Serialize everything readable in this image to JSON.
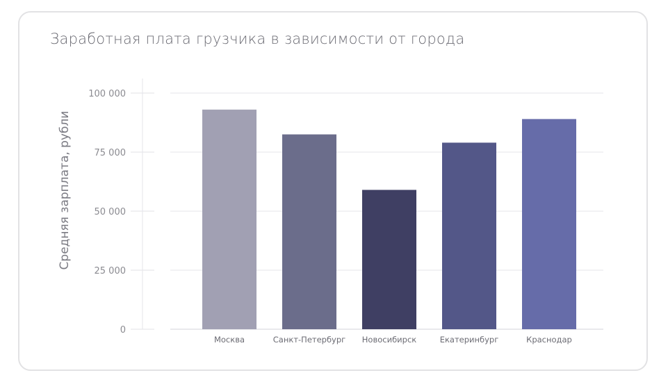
{
  "chart_data": {
    "type": "bar",
    "title": "Заработная плата грузчика в зависимости от города",
    "xlabel": "",
    "ylabel": "Средняя зарплата, рубли",
    "categories": [
      "Москва",
      "Санкт-Петербург",
      "Новосибирск",
      "Екатеринбург",
      "Краснодар"
    ],
    "values": [
      93000,
      82500,
      59000,
      79000,
      89000
    ],
    "colors": [
      "#a1a0b3",
      "#6b6d8b",
      "#3f3f63",
      "#535788",
      "#666ca9"
    ],
    "ylim": [
      0,
      100000
    ],
    "yticks": [
      0,
      25000,
      50000,
      75000,
      100000
    ],
    "ytick_labels": [
      "0",
      "25 000",
      "50 000",
      "75 000",
      "100 000"
    ],
    "grid": true,
    "legend": "none"
  }
}
